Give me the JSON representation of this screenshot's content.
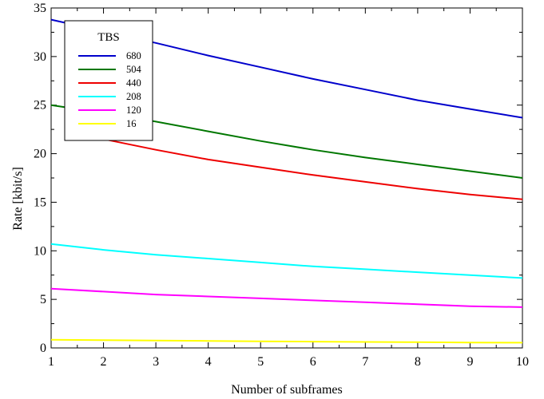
{
  "chart_data": {
    "type": "line",
    "xlabel": "Number of subframes",
    "ylabel": "Rate [kbit/s]",
    "xlim": [
      1,
      10
    ],
    "ylim": [
      0,
      35
    ],
    "xticks": [
      "1",
      "2",
      "3",
      "4",
      "5",
      "6",
      "7",
      "8",
      "9",
      "10"
    ],
    "yticks": [
      "0",
      "5",
      "10",
      "15",
      "20",
      "25",
      "30",
      "35"
    ],
    "grid": false,
    "legend": {
      "title": "TBS",
      "position": "top-left"
    },
    "series": [
      {
        "name": "680",
        "color": "#0000cc",
        "x": [
          1,
          2,
          3,
          4,
          5,
          6,
          7,
          8,
          9,
          10
        ],
        "y": [
          33.8,
          32.6,
          31.4,
          30.1,
          28.9,
          27.7,
          26.6,
          25.5,
          24.6,
          23.7
        ]
      },
      {
        "name": "504",
        "color": "#007700",
        "x": [
          1,
          2,
          3,
          4,
          5,
          6,
          7,
          8,
          9,
          10
        ],
        "y": [
          25.0,
          24.2,
          23.3,
          22.3,
          21.3,
          20.4,
          19.6,
          18.9,
          18.2,
          17.5
        ]
      },
      {
        "name": "440",
        "color": "#ee0000",
        "x": [
          2,
          3,
          4,
          5,
          6,
          7,
          8,
          9,
          10
        ],
        "y": [
          21.5,
          20.4,
          19.4,
          18.6,
          17.8,
          17.1,
          16.4,
          15.8,
          15.3
        ]
      },
      {
        "name": "208",
        "color": "#00ffff",
        "x": [
          1,
          2,
          3,
          4,
          5,
          6,
          7,
          8,
          9,
          10
        ],
        "y": [
          10.7,
          10.1,
          9.6,
          9.2,
          8.8,
          8.4,
          8.1,
          7.8,
          7.5,
          7.2
        ]
      },
      {
        "name": "120",
        "color": "#ff00ff",
        "x": [
          1,
          2,
          3,
          4,
          5,
          6,
          7,
          8,
          9,
          10
        ],
        "y": [
          6.1,
          5.8,
          5.5,
          5.3,
          5.1,
          4.9,
          4.7,
          4.5,
          4.3,
          4.2
        ]
      },
      {
        "name": "16",
        "color": "#ffff00",
        "x": [
          1,
          2,
          3,
          4,
          5,
          6,
          7,
          8,
          9,
          10
        ],
        "y": [
          0.85,
          0.8,
          0.76,
          0.72,
          0.68,
          0.65,
          0.62,
          0.59,
          0.56,
          0.54
        ]
      }
    ]
  }
}
